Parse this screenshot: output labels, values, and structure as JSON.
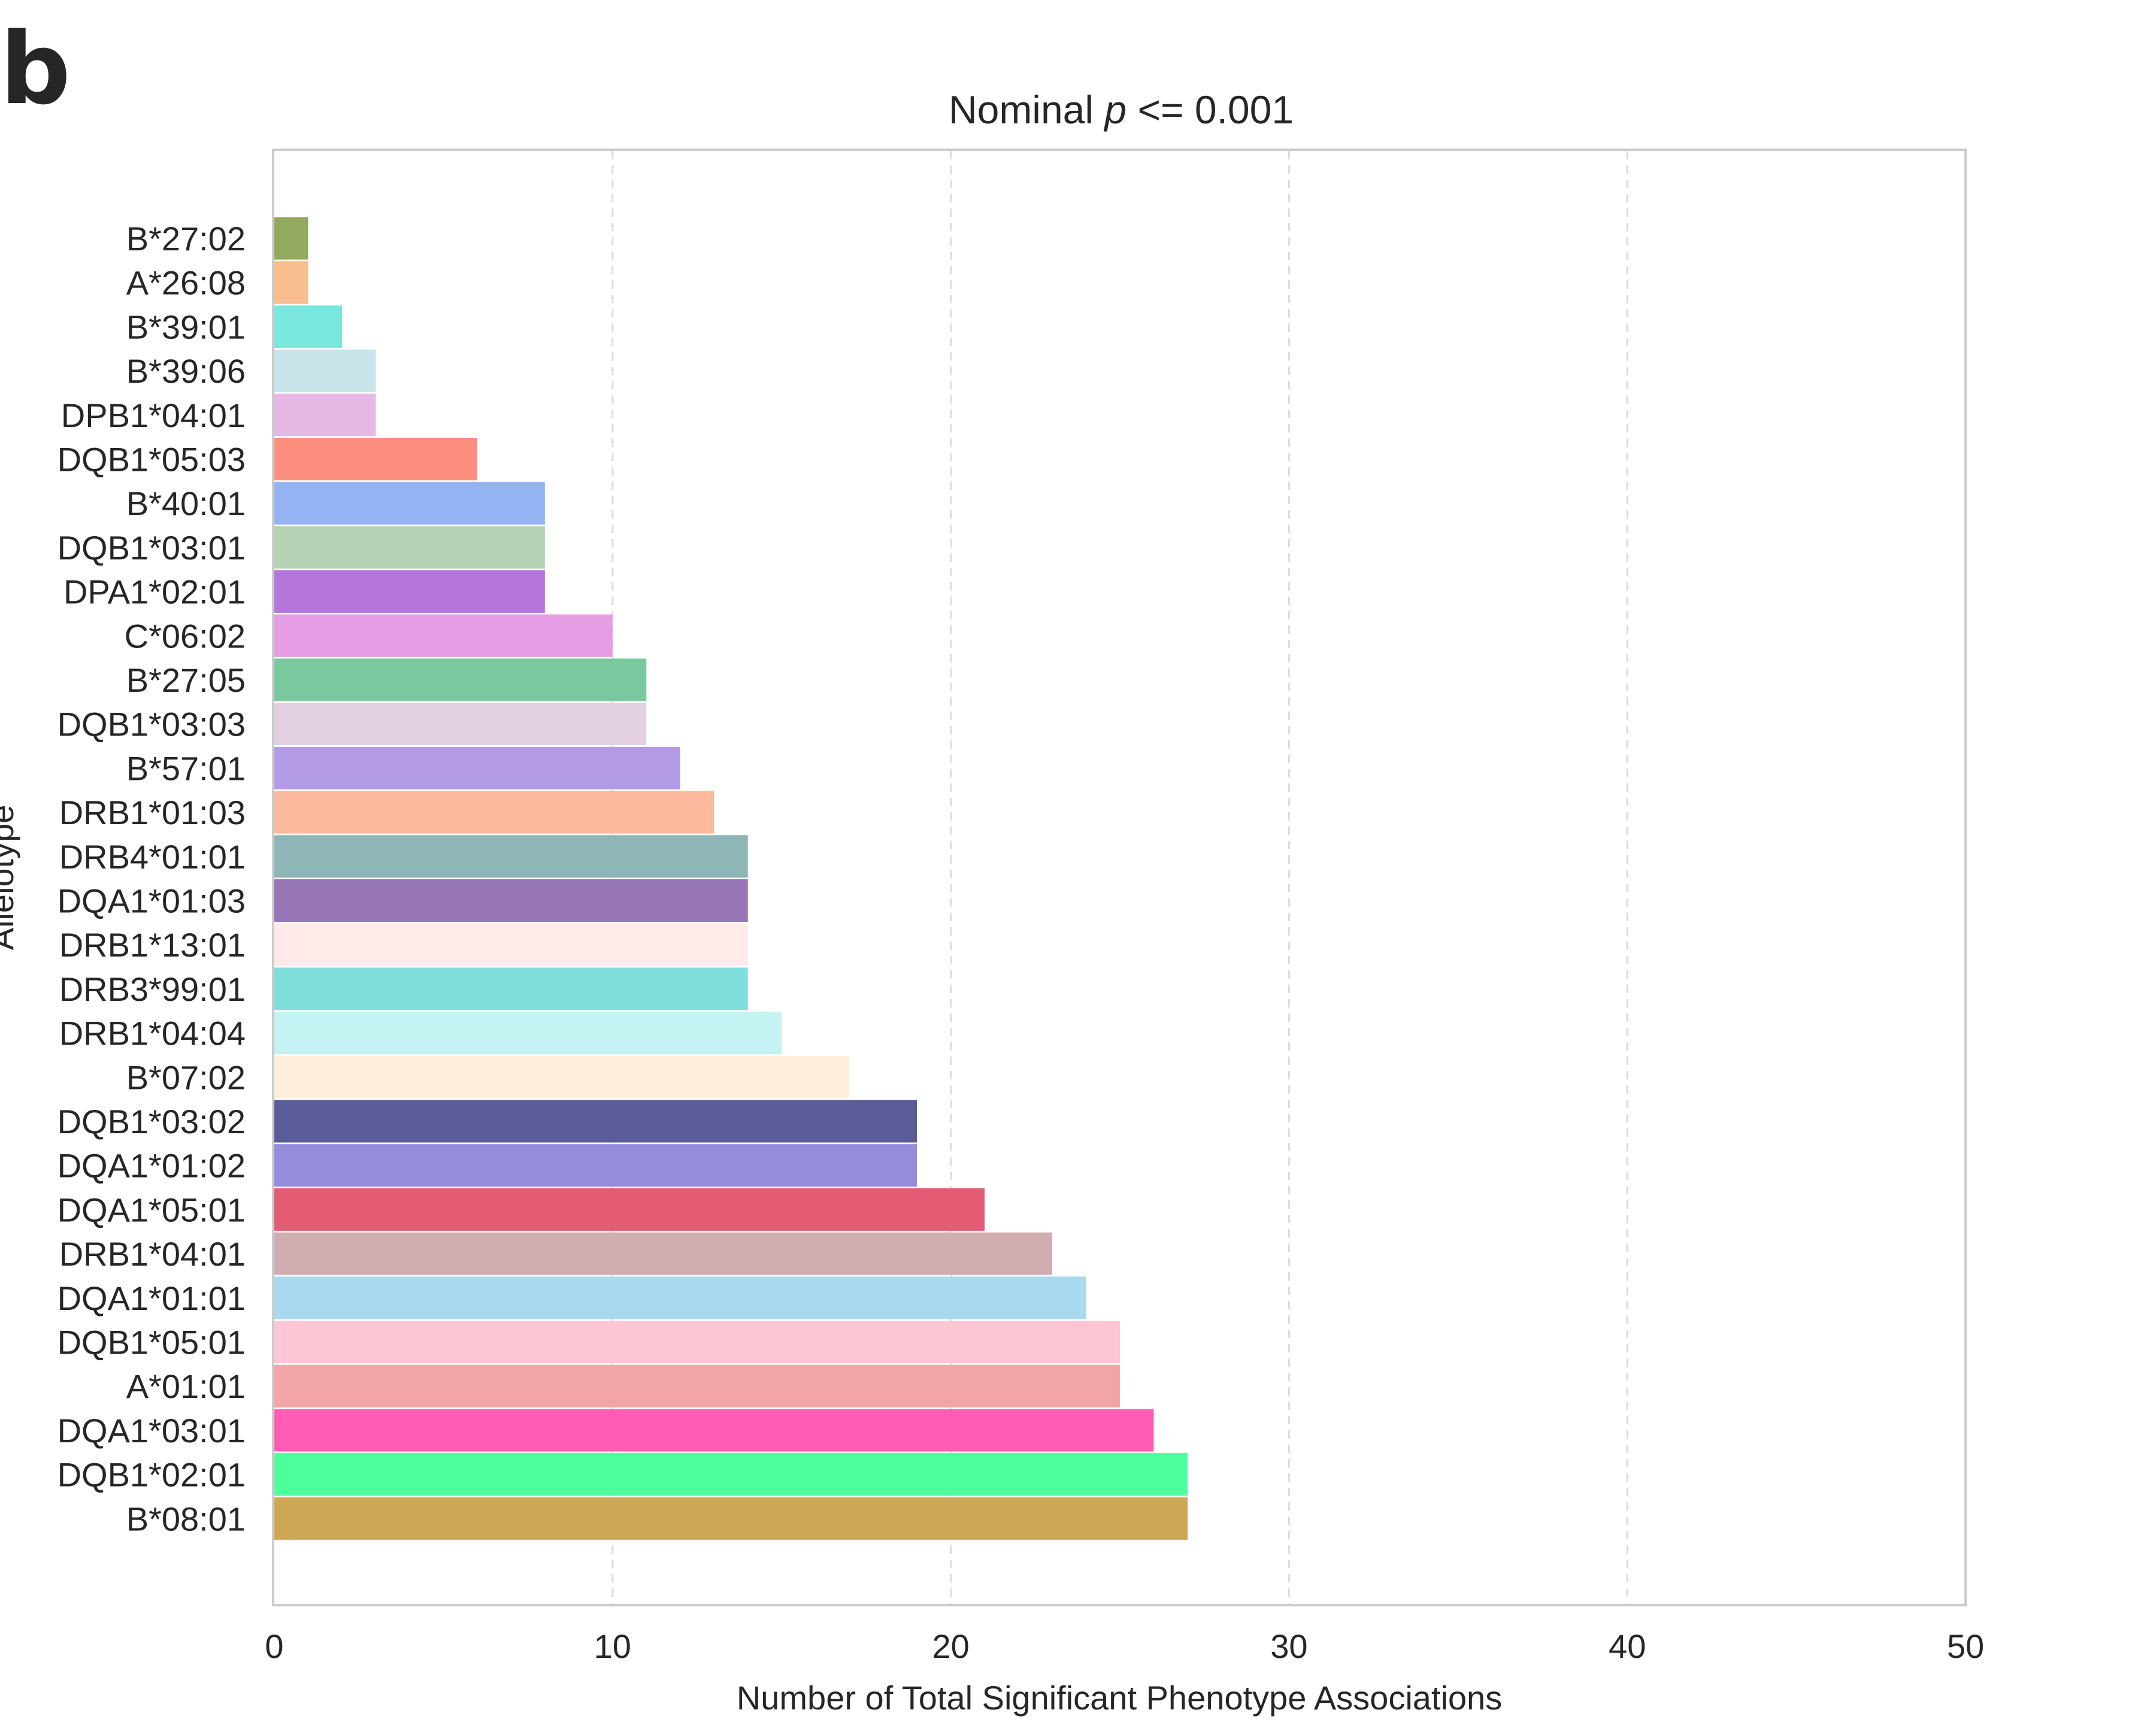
{
  "panel_label": "b",
  "chart_data": {
    "type": "bar",
    "orientation": "horizontal",
    "title_prefix": "Nominal ",
    "title_italic": "p",
    "title_suffix": " <= 0.001",
    "xlabel": "Number of Total Significant Phenotype Associations",
    "ylabel": "Allelotype",
    "xlim": [
      0,
      50
    ],
    "xticks": [
      "0",
      "10",
      "20",
      "30",
      "40",
      "50"
    ],
    "grid": "x dashed",
    "categories": [
      "B*27:02",
      "A*26:08",
      "B*39:01",
      "B*39:06",
      "DPB1*04:01",
      "DQB1*05:03",
      "B*40:01",
      "DQB1*03:01",
      "DPA1*02:01",
      "C*06:02",
      "B*27:05",
      "DQB1*03:03",
      "B*57:01",
      "DRB1*01:03",
      "DRB4*01:01",
      "DQA1*01:03",
      "DRB1*13:01",
      "DRB3*99:01",
      "DRB1*04:04",
      "B*07:02",
      "DQB1*03:02",
      "DQA1*01:02",
      "DQA1*05:01",
      "DRB1*04:01",
      "DQA1*01:01",
      "DQB1*05:01",
      "A*01:01",
      "DQA1*03:01",
      "DQB1*02:01",
      "B*08:01"
    ],
    "values": [
      1,
      1,
      2,
      3,
      3,
      6,
      8,
      8,
      8,
      10,
      11,
      11,
      12,
      13,
      14,
      14,
      14,
      14,
      15,
      17,
      19,
      19,
      21,
      23,
      24,
      25,
      25,
      26,
      27,
      27
    ],
    "colors": [
      "#94A95E",
      "#F9BE8F",
      "#7AE7DF",
      "#C7E5EB",
      "#E6B8E6",
      "#FD8E7E",
      "#93B3F3",
      "#B4D2B3",
      "#B476DB",
      "#E59DE3",
      "#7AC89D",
      "#E2D0E1",
      "#B39AE5",
      "#FEBA9E",
      "#8EB6B6",
      "#9675B6",
      "#FFEAEA",
      "#80DFDC",
      "#C5F2F3",
      "#FEEEDC",
      "#5B5B98",
      "#968CDC",
      "#E45C74",
      "#D0ADB1",
      "#A8DAED",
      "#FEC6D4",
      "#F2A4A7",
      "#FE5DB3",
      "#4DFE9D",
      "#CDA755"
    ]
  }
}
